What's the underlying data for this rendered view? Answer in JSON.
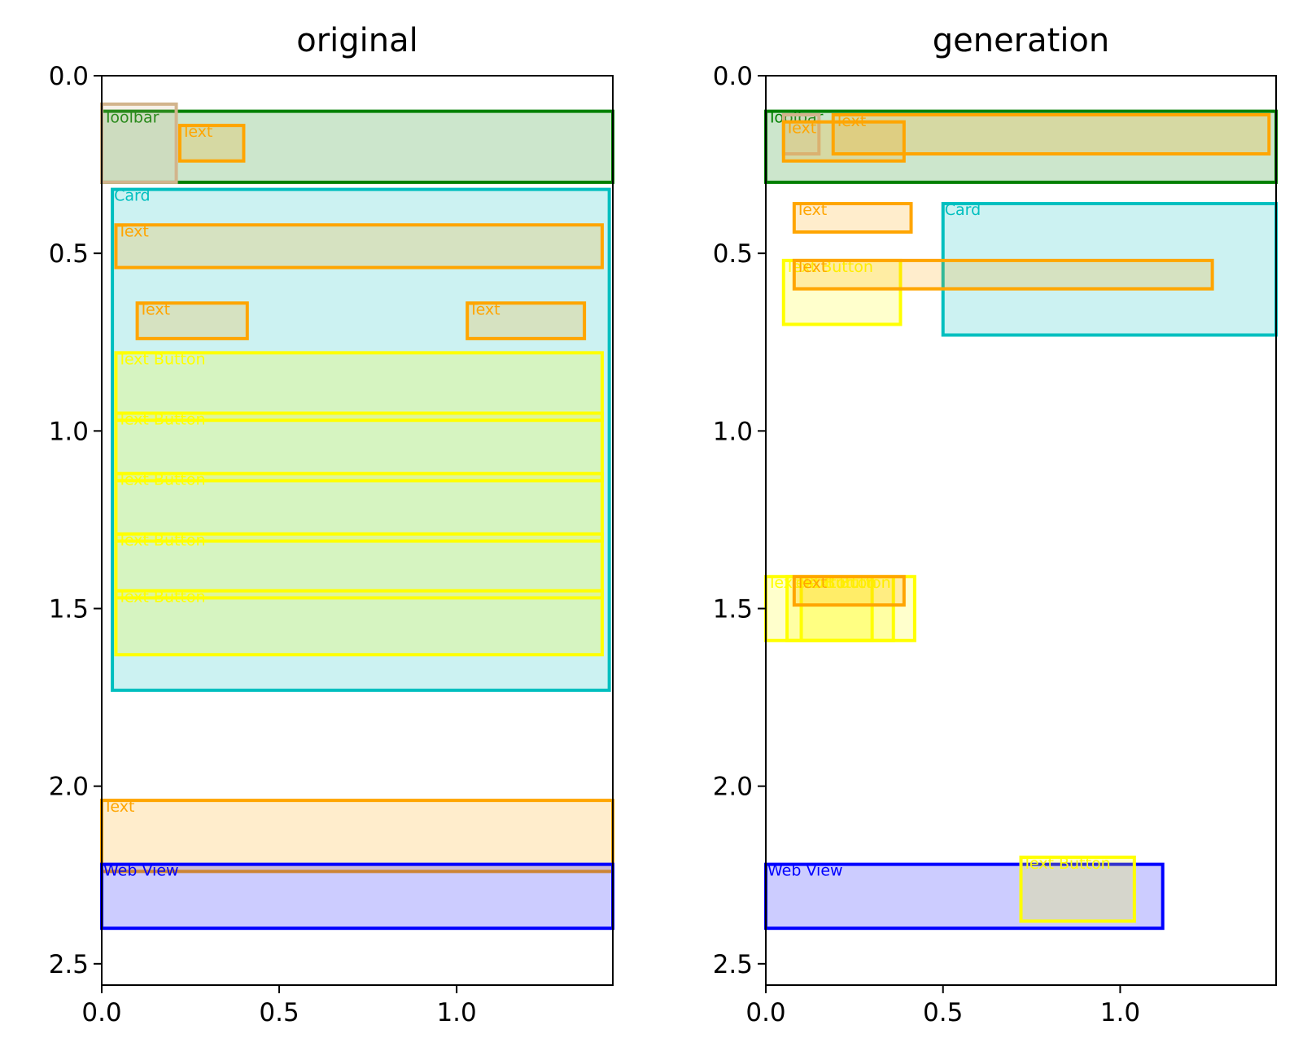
{
  "chart_data": [
    {
      "type": "bounding-box",
      "title": "original",
      "xlim": [
        0,
        1.44
      ],
      "ylim": [
        2.56,
        0
      ],
      "xticks": [
        "0.0",
        "0.5",
        "1.0"
      ],
      "xtick_values": [
        0,
        0.5,
        1.0
      ],
      "yticks": [
        "0.0",
        "0.5",
        "1.0",
        "1.5",
        "2.0",
        "2.5"
      ],
      "ytick_values": [
        0,
        0.5,
        1.0,
        1.5,
        2.0,
        2.5
      ],
      "boxes": [
        {
          "label": "Toolbar",
          "kind": "toolbar",
          "x0": 0.0,
          "y0": 0.1,
          "x1": 1.44,
          "y1": 0.3
        },
        {
          "label": "",
          "kind": "image",
          "x0": 0.0,
          "y0": 0.08,
          "x1": 0.21,
          "y1": 0.3
        },
        {
          "label": "Text",
          "kind": "text",
          "x0": 0.22,
          "y0": 0.14,
          "x1": 0.4,
          "y1": 0.24
        },
        {
          "label": "Card",
          "kind": "card",
          "x0": 0.03,
          "y0": 0.32,
          "x1": 1.43,
          "y1": 1.73
        },
        {
          "label": "Text",
          "kind": "text",
          "x0": 0.04,
          "y0": 0.42,
          "x1": 1.41,
          "y1": 0.54
        },
        {
          "label": "Text",
          "kind": "text",
          "x0": 0.1,
          "y0": 0.64,
          "x1": 0.41,
          "y1": 0.74
        },
        {
          "label": "Text",
          "kind": "text",
          "x0": 1.03,
          "y0": 0.64,
          "x1": 1.36,
          "y1": 0.74
        },
        {
          "label": "Text Button",
          "kind": "button",
          "x0": 0.04,
          "y0": 0.78,
          "x1": 1.41,
          "y1": 0.97
        },
        {
          "label": "Text Button",
          "kind": "button",
          "x0": 0.04,
          "y0": 0.95,
          "x1": 1.41,
          "y1": 1.14
        },
        {
          "label": "Text Button",
          "kind": "button",
          "x0": 0.04,
          "y0": 1.12,
          "x1": 1.41,
          "y1": 1.31
        },
        {
          "label": "Text Button",
          "kind": "button",
          "x0": 0.04,
          "y0": 1.29,
          "x1": 1.41,
          "y1": 1.47
        },
        {
          "label": "Text Button",
          "kind": "button",
          "x0": 0.04,
          "y0": 1.45,
          "x1": 1.41,
          "y1": 1.63
        },
        {
          "label": "Text",
          "kind": "text",
          "x0": 0.0,
          "y0": 2.04,
          "x1": 1.44,
          "y1": 2.24
        },
        {
          "label": "Web View",
          "kind": "webview",
          "x0": 0.0,
          "y0": 2.22,
          "x1": 1.44,
          "y1": 2.4
        }
      ]
    },
    {
      "type": "bounding-box",
      "title": "generation",
      "xlim": [
        0,
        1.44
      ],
      "ylim": [
        2.56,
        0
      ],
      "xticks": [
        "0.0",
        "0.5",
        "1.0"
      ],
      "xtick_values": [
        0,
        0.5,
        1.0
      ],
      "yticks": [
        "0.0",
        "0.5",
        "1.0",
        "1.5",
        "2.0",
        "2.5"
      ],
      "ytick_values": [
        0,
        0.5,
        1.0,
        1.5,
        2.0,
        2.5
      ],
      "boxes": [
        {
          "label": "Toolbar",
          "kind": "toolbar",
          "x0": 0.0,
          "y0": 0.1,
          "x1": 1.44,
          "y1": 0.3
        },
        {
          "label": "",
          "kind": "image",
          "x0": 0.05,
          "y0": 0.11,
          "x1": 0.15,
          "y1": 0.22
        },
        {
          "label": "Text",
          "kind": "text",
          "x0": 0.05,
          "y0": 0.13,
          "x1": 0.39,
          "y1": 0.24
        },
        {
          "label": "Text",
          "kind": "text",
          "x0": 0.19,
          "y0": 0.11,
          "x1": 1.42,
          "y1": 0.22
        },
        {
          "label": "Text",
          "kind": "text",
          "x0": 0.08,
          "y0": 0.36,
          "x1": 0.41,
          "y1": 0.44
        },
        {
          "label": "Card",
          "kind": "card",
          "x0": 0.5,
          "y0": 0.36,
          "x1": 1.44,
          "y1": 0.73
        },
        {
          "label": "Text Button",
          "kind": "button",
          "x0": 0.05,
          "y0": 0.52,
          "x1": 0.38,
          "y1": 0.7
        },
        {
          "label": "Text",
          "kind": "text",
          "x0": 0.08,
          "y0": 0.52,
          "x1": 1.26,
          "y1": 0.6
        },
        {
          "label": "Text Button",
          "kind": "button",
          "x0": 0.0,
          "y0": 1.41,
          "x1": 0.3,
          "y1": 1.59
        },
        {
          "label": "Text Button",
          "kind": "button",
          "x0": 0.06,
          "y0": 1.41,
          "x1": 0.36,
          "y1": 1.59
        },
        {
          "label": "Text Button",
          "kind": "button",
          "x0": 0.1,
          "y0": 1.41,
          "x1": 0.42,
          "y1": 1.59
        },
        {
          "label": "Text",
          "kind": "text",
          "x0": 0.08,
          "y0": 1.41,
          "x1": 0.39,
          "y1": 1.49
        },
        {
          "label": "Web View",
          "kind": "webview",
          "x0": 0.0,
          "y0": 2.22,
          "x1": 1.12,
          "y1": 2.4
        },
        {
          "label": "Text Button",
          "kind": "button",
          "x0": 0.72,
          "y0": 2.2,
          "x1": 1.04,
          "y1": 2.38
        }
      ]
    }
  ],
  "colors": {
    "toolbar": "#008000",
    "image": "#d2b48c",
    "text": "#ffa500",
    "card": "#00bfbf",
    "button": "#ffff00",
    "webview": "#0000ff"
  }
}
